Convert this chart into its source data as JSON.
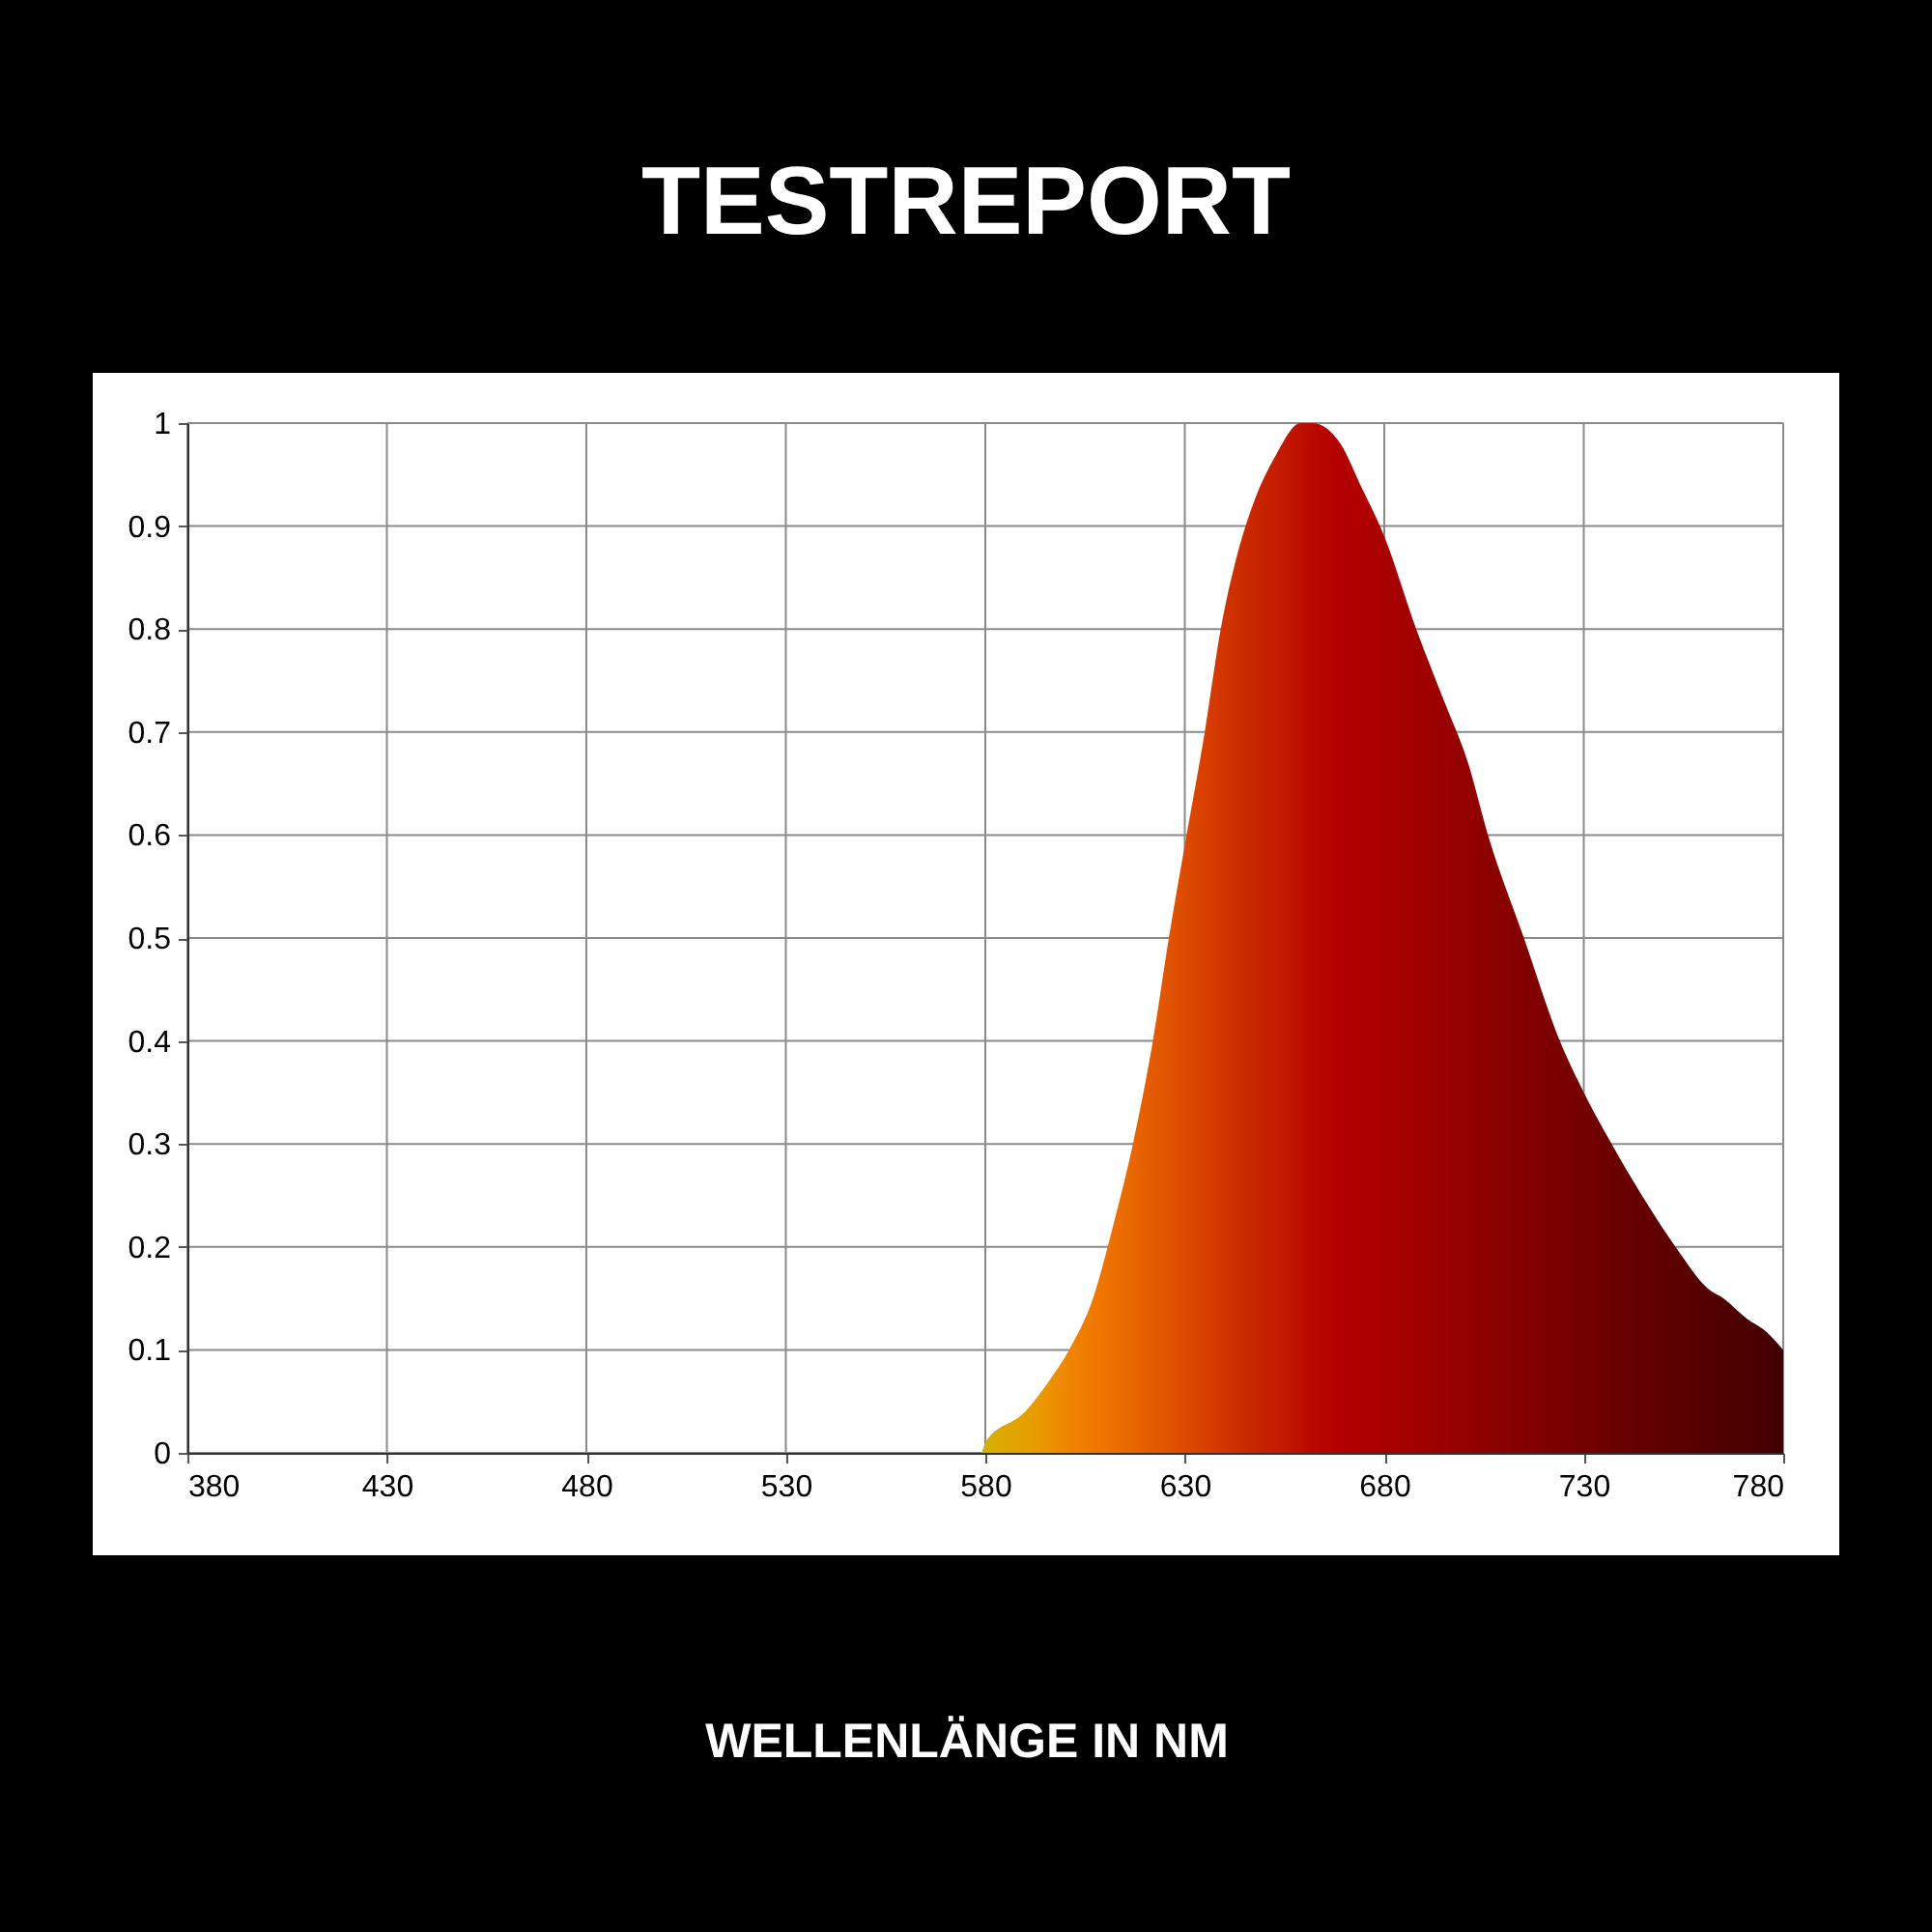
{
  "chart_data": {
    "type": "area",
    "title": "TESTREPORT",
    "xlabel": "WELLENLÄNGE IN NM",
    "x": [
      380,
      430,
      480,
      530,
      579,
      580,
      590,
      596,
      601,
      607,
      612,
      617,
      622,
      626,
      630,
      635,
      639,
      643,
      647,
      653,
      659,
      662,
      669,
      674,
      680,
      688,
      695,
      701,
      706,
      715,
      724,
      730,
      737,
      743,
      753,
      761,
      765,
      771,
      775,
      780
    ],
    "values": [
      0,
      0,
      0,
      0,
      0,
      0.01,
      0.04,
      0.07,
      0.1,
      0.15,
      0.22,
      0.3,
      0.4,
      0.5,
      0.59,
      0.7,
      0.8,
      0.87,
      0.92,
      0.97,
      1.0,
      1.0,
      0.98,
      0.94,
      0.89,
      0.8,
      0.73,
      0.67,
      0.6,
      0.5,
      0.4,
      0.35,
      0.3,
      0.26,
      0.2,
      0.16,
      0.15,
      0.13,
      0.12,
      0.1
    ],
    "colors": [
      "#c8b400",
      "#c8b400",
      "#c8b400",
      "#c8b400",
      "#c8b400",
      "#d4b000",
      "#e6a000",
      "#ec9200",
      "#f08400",
      "#f07800",
      "#ec7000",
      "#e86600",
      "#e45a00",
      "#e05400",
      "#dc4a00",
      "#d84000",
      "#d23600",
      "#cc2e00",
      "#c82600",
      "#c41c00",
      "#bc1000",
      "#b80800",
      "#b40000",
      "#b00000",
      "#aa0000",
      "#a20000",
      "#9a0000",
      "#940000",
      "#8e0000",
      "#840000",
      "#7a0000",
      "#740000",
      "#6c0000",
      "#660000",
      "#5c0000",
      "#540000",
      "#500000",
      "#4c0000",
      "#480000",
      "#420000"
    ],
    "xlim": [
      380,
      780
    ],
    "ylim": [
      0,
      1
    ],
    "xticks": [
      380,
      430,
      480,
      530,
      580,
      630,
      680,
      730,
      780
    ],
    "yticks": [
      0,
      0.1,
      0.2,
      0.3,
      0.4,
      0.5,
      0.6,
      0.7,
      0.8,
      0.9,
      1
    ],
    "grid": true
  }
}
